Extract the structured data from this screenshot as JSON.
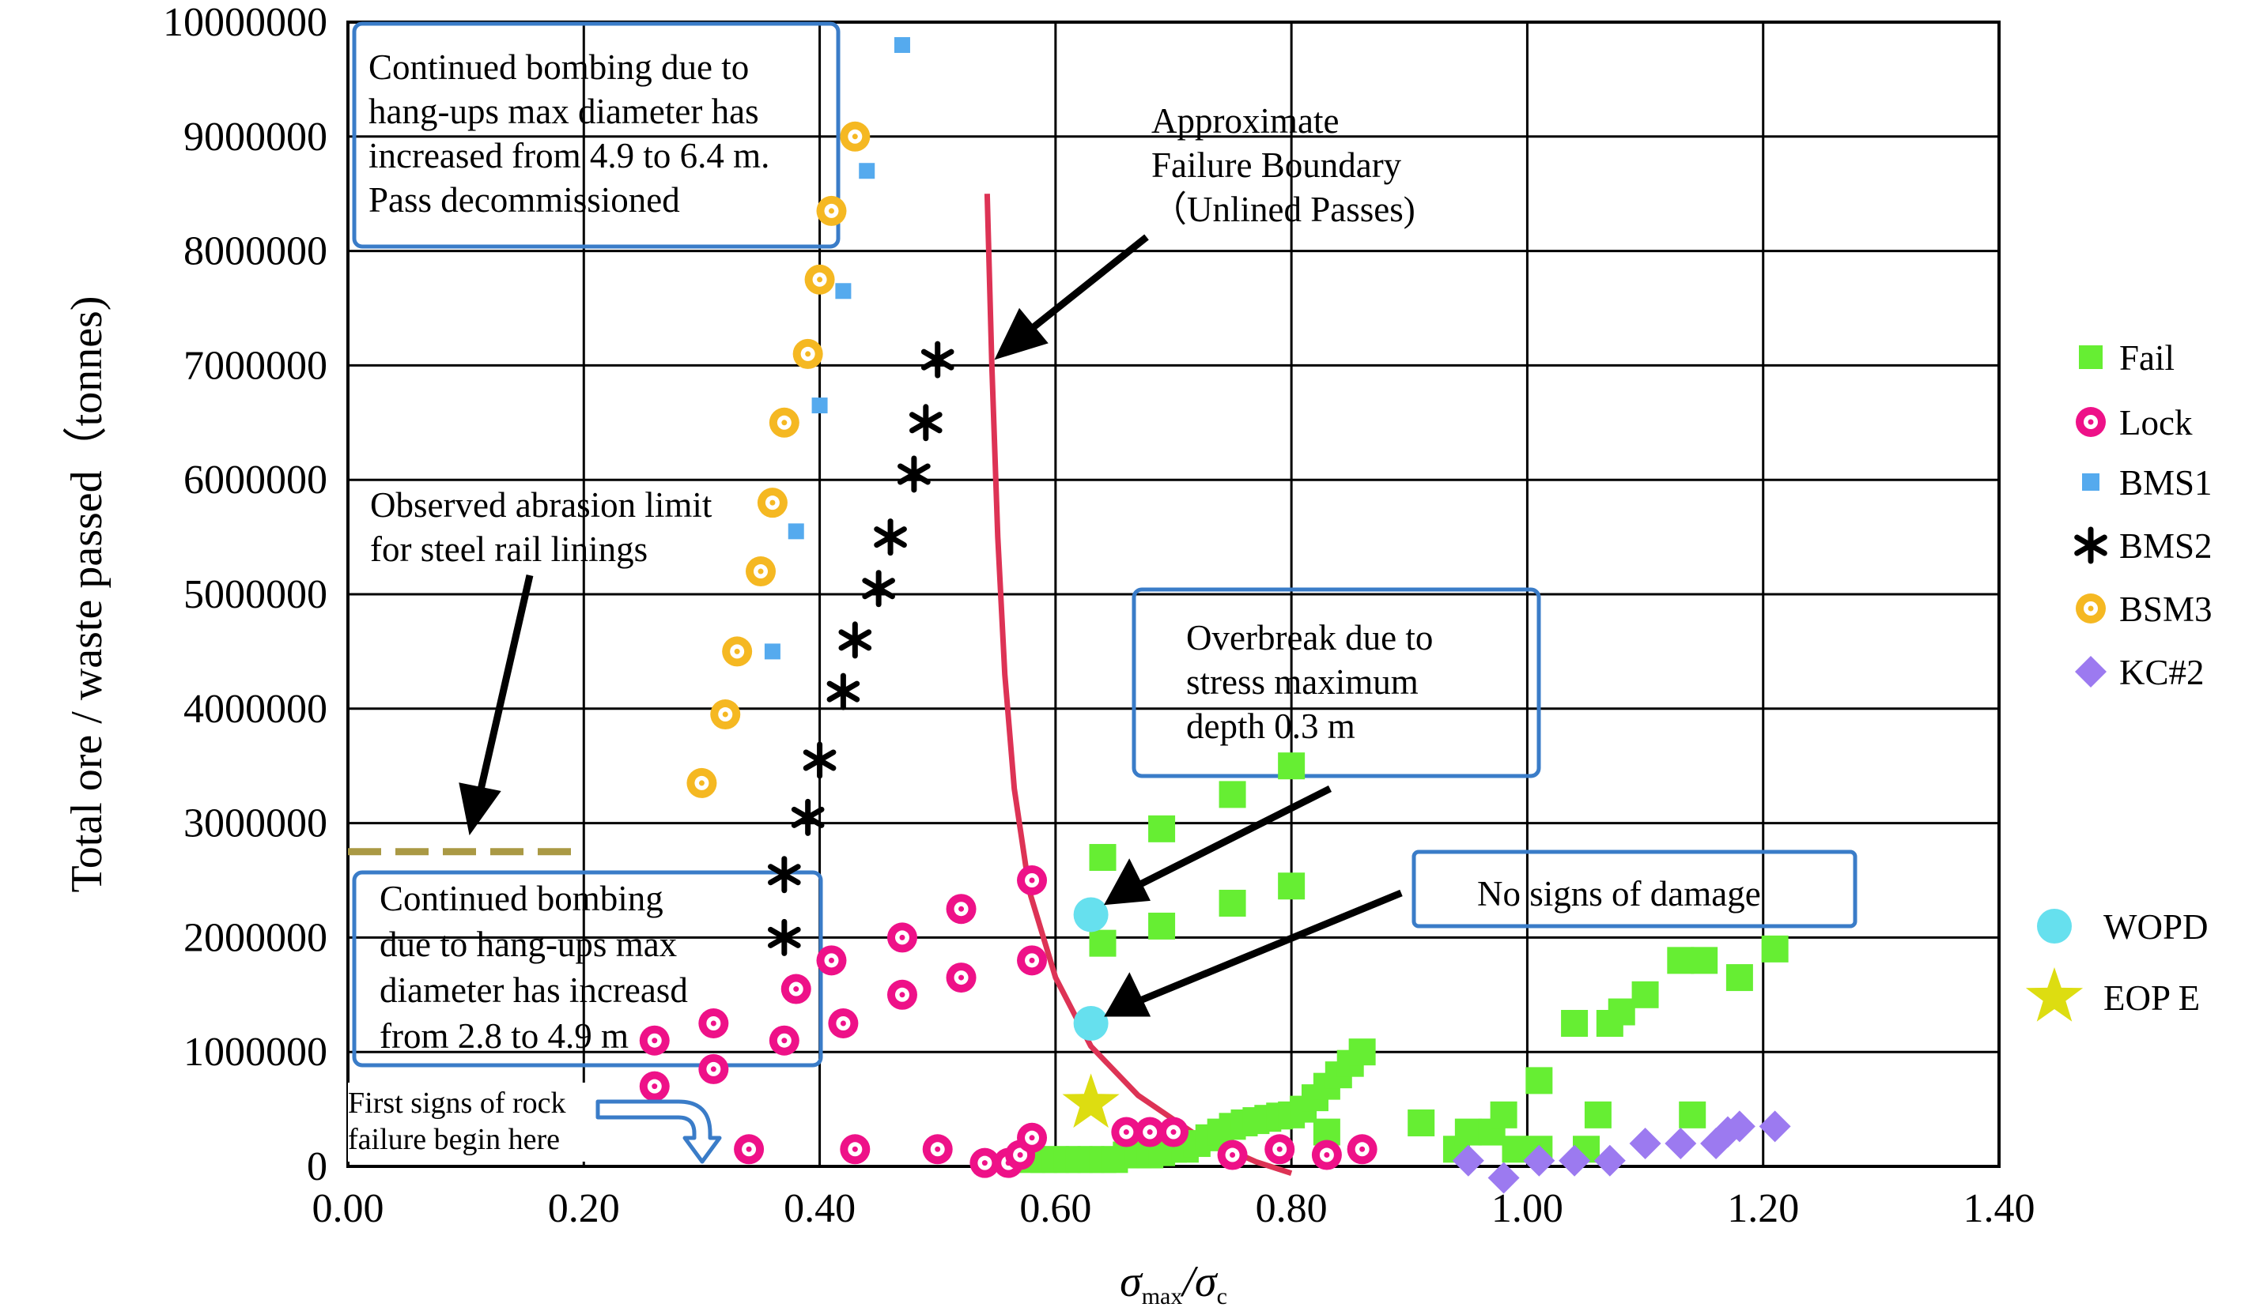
{
  "chart_data": {
    "type": "scatter",
    "xlabel": "σmax/σc",
    "ylabel": "Total ore / waste passed（tonnes)",
    "xlim": [
      0,
      1.4
    ],
    "ylim": [
      0,
      10000000
    ],
    "x_ticks": [
      "0.00",
      "0.20",
      "0.40",
      "0.60",
      "0.80",
      "1.00",
      "1.20",
      "1.40"
    ],
    "y_ticks": [
      "0",
      "1000000",
      "2000000",
      "3000000",
      "4000000",
      "5000000",
      "6000000",
      "7000000",
      "8000000",
      "9000000",
      "10000000"
    ],
    "grid": true,
    "legend_position": "right",
    "series": [
      {
        "name": "Fail",
        "marker": "square",
        "color": "#66ee33",
        "points": [
          [
            0.58,
            60000
          ],
          [
            0.59,
            60000
          ],
          [
            0.6,
            60000
          ],
          [
            0.61,
            60000
          ],
          [
            0.62,
            60000
          ],
          [
            0.63,
            60000
          ],
          [
            0.64,
            60000
          ],
          [
            0.65,
            60000
          ],
          [
            0.66,
            100000
          ],
          [
            0.67,
            100000
          ],
          [
            0.68,
            100000
          ],
          [
            0.69,
            120000
          ],
          [
            0.7,
            150000
          ],
          [
            0.71,
            150000
          ],
          [
            0.72,
            200000
          ],
          [
            0.73,
            250000
          ],
          [
            0.74,
            300000
          ],
          [
            0.75,
            350000
          ],
          [
            0.76,
            380000
          ],
          [
            0.77,
            400000
          ],
          [
            0.78,
            420000
          ],
          [
            0.79,
            440000
          ],
          [
            0.8,
            450000
          ],
          [
            0.81,
            500000
          ],
          [
            0.82,
            600000
          ],
          [
            0.83,
            700000
          ],
          [
            0.84,
            800000
          ],
          [
            0.85,
            900000
          ],
          [
            0.86,
            1000000
          ],
          [
            0.83,
            300000
          ],
          [
            0.91,
            380000
          ],
          [
            0.94,
            150000
          ],
          [
            0.95,
            300000
          ],
          [
            0.97,
            300000
          ],
          [
            0.98,
            450000
          ],
          [
            0.99,
            150000
          ],
          [
            1.01,
            150000
          ],
          [
            1.01,
            750000
          ],
          [
            1.04,
            1250000
          ],
          [
            1.05,
            150000
          ],
          [
            1.06,
            450000
          ],
          [
            1.07,
            1250000
          ],
          [
            1.08,
            1350000
          ],
          [
            1.1,
            1500000
          ],
          [
            1.13,
            1800000
          ],
          [
            1.15,
            1800000
          ],
          [
            1.18,
            1650000
          ],
          [
            1.21,
            1900000
          ],
          [
            1.14,
            450000
          ],
          [
            0.64,
            2700000
          ],
          [
            0.64,
            1950000
          ],
          [
            0.69,
            2100000
          ],
          [
            0.69,
            2950000
          ],
          [
            0.75,
            2300000
          ],
          [
            0.75,
            3250000
          ],
          [
            0.8,
            2450000
          ],
          [
            0.8,
            3500000
          ]
        ]
      },
      {
        "name": "Lock",
        "marker": "ring",
        "color": "#ee1188",
        "points": [
          [
            0.26,
            1100000
          ],
          [
            0.26,
            700000
          ],
          [
            0.31,
            1250000
          ],
          [
            0.31,
            850000
          ],
          [
            0.34,
            150000
          ],
          [
            0.37,
            1100000
          ],
          [
            0.38,
            1550000
          ],
          [
            0.41,
            1800000
          ],
          [
            0.42,
            1250000
          ],
          [
            0.43,
            150000
          ],
          [
            0.47,
            1500000
          ],
          [
            0.47,
            2000000
          ],
          [
            0.5,
            150000
          ],
          [
            0.52,
            1650000
          ],
          [
            0.52,
            2250000
          ],
          [
            0.54,
            30000
          ],
          [
            0.56,
            30000
          ],
          [
            0.57,
            100000
          ],
          [
            0.58,
            250000
          ],
          [
            0.58,
            1800000
          ],
          [
            0.58,
            2500000
          ],
          [
            0.66,
            300000
          ],
          [
            0.68,
            300000
          ],
          [
            0.7,
            300000
          ],
          [
            0.75,
            100000
          ],
          [
            0.79,
            150000
          ],
          [
            0.83,
            100000
          ],
          [
            0.86,
            150000
          ]
        ]
      },
      {
        "name": "BMS1",
        "marker": "small-square",
        "color": "#55aaee",
        "points": [
          [
            0.36,
            4500000
          ],
          [
            0.38,
            5550000
          ],
          [
            0.4,
            6650000
          ],
          [
            0.42,
            7650000
          ],
          [
            0.44,
            8700000
          ],
          [
            0.47,
            9800000
          ]
        ]
      },
      {
        "name": "BMS2",
        "marker": "asterisk",
        "color": "#000000",
        "points": [
          [
            0.37,
            2000000
          ],
          [
            0.37,
            2550000
          ],
          [
            0.39,
            3050000
          ],
          [
            0.4,
            3550000
          ],
          [
            0.42,
            4150000
          ],
          [
            0.43,
            4600000
          ],
          [
            0.45,
            5050000
          ],
          [
            0.46,
            5500000
          ],
          [
            0.48,
            6050000
          ],
          [
            0.49,
            6500000
          ],
          [
            0.5,
            7050000
          ]
        ]
      },
      {
        "name": "BSM3",
        "marker": "ring",
        "color": "#f5b822",
        "points": [
          [
            0.3,
            3350000
          ],
          [
            0.32,
            3950000
          ],
          [
            0.33,
            4500000
          ],
          [
            0.35,
            5200000
          ],
          [
            0.36,
            5800000
          ],
          [
            0.37,
            6500000
          ],
          [
            0.39,
            7100000
          ],
          [
            0.4,
            7750000
          ],
          [
            0.41,
            8350000
          ],
          [
            0.43,
            9000000
          ]
        ]
      },
      {
        "name": "KC#2",
        "marker": "diamond",
        "color": "#9c7af0",
        "points": [
          [
            0.95,
            50000
          ],
          [
            0.98,
            -100000
          ],
          [
            1.01,
            50000
          ],
          [
            1.04,
            50000
          ],
          [
            1.07,
            50000
          ],
          [
            1.1,
            200000
          ],
          [
            1.13,
            200000
          ],
          [
            1.16,
            200000
          ],
          [
            1.17,
            300000
          ],
          [
            1.18,
            350000
          ],
          [
            1.21,
            350000
          ]
        ]
      },
      {
        "name": "WOPD",
        "marker": "circle",
        "color": "#66e0ee",
        "points": [
          [
            0.63,
            2200000
          ],
          [
            0.63,
            1250000
          ]
        ]
      },
      {
        "name": "EOP E",
        "marker": "star",
        "color": "#dddd11",
        "points": [
          [
            0.63,
            550000
          ]
        ]
      }
    ],
    "failure_boundary": {
      "color": "#dd3355",
      "points": [
        [
          0.542,
          8500000
        ],
        [
          0.546,
          7000000
        ],
        [
          0.551,
          5500000
        ],
        [
          0.557,
          4300000
        ],
        [
          0.565,
          3300000
        ],
        [
          0.578,
          2400000
        ],
        [
          0.6,
          1650000
        ],
        [
          0.63,
          1050000
        ],
        [
          0.67,
          620000
        ],
        [
          0.72,
          270000
        ],
        [
          0.77,
          40000
        ],
        [
          0.8,
          -60000
        ]
      ]
    },
    "abrasion_limit": {
      "color": "#aa9944",
      "x_range": [
        0,
        0.19
      ],
      "y": 2750000
    },
    "annotations": {
      "bombing_top": [
        "Continued bombing due to",
        "hang-ups max diameter has",
        "increased from 4.9 to 6.4 m.",
        "Pass decommissioned"
      ],
      "boundary_label": [
        "Approximate",
        "Failure Boundary",
        "（Unlined Passes)"
      ],
      "abrasion": [
        "Observed abrasion limit",
        "for steel rail linings"
      ],
      "overbreak": [
        "Overbreak due to",
        "stress  maximum",
        "depth 0.3 m"
      ],
      "no_damage": [
        "No signs of damage"
      ],
      "bombing_bottom": [
        "Continued bombing",
        "due to hang-ups max",
        "diameter has increasd",
        "from 2.8 to 4.9 m"
      ],
      "first_signs": [
        "First signs of rock",
        "failure begin here"
      ]
    }
  }
}
